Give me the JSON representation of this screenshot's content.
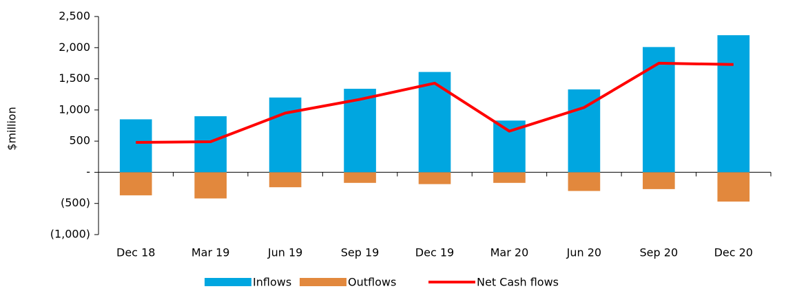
{
  "chart_data": {
    "type": "bar_line",
    "y_label": "$million",
    "categories": [
      "Dec 18",
      "Mar 19",
      "Jun 19",
      "Sep 19",
      "Dec 19",
      "Mar 20",
      "Jun 20",
      "Sep 20",
      "Dec 20"
    ],
    "series": [
      {
        "name": "Inflows",
        "type": "bar",
        "color": "#00a6e0",
        "values": [
          850,
          900,
          1200,
          1340,
          1610,
          830,
          1330,
          2010,
          2200
        ]
      },
      {
        "name": "Outflows",
        "type": "bar",
        "color": "#e2883d",
        "values": [
          -370,
          -420,
          -240,
          -170,
          -190,
          -170,
          -300,
          -270,
          -470
        ]
      },
      {
        "name": "Net Cash flows",
        "type": "line",
        "color": "#ff0000",
        "values": [
          480,
          490,
          950,
          1170,
          1430,
          660,
          1040,
          1750,
          1730
        ]
      }
    ],
    "ylim": [
      -1000,
      2500
    ],
    "yticks": [
      {
        "value": -1000,
        "label": "(1,000)"
      },
      {
        "value": -500,
        "label": "(500)"
      },
      {
        "value": 0,
        "label": "-"
      },
      500,
      {
        "value": 1000,
        "label": "1,000"
      },
      {
        "value": 1500,
        "label": "1,500"
      },
      {
        "value": 2000,
        "label": "2,000"
      },
      {
        "value": 2500,
        "label": "2,500"
      }
    ],
    "legend": "bottom"
  }
}
